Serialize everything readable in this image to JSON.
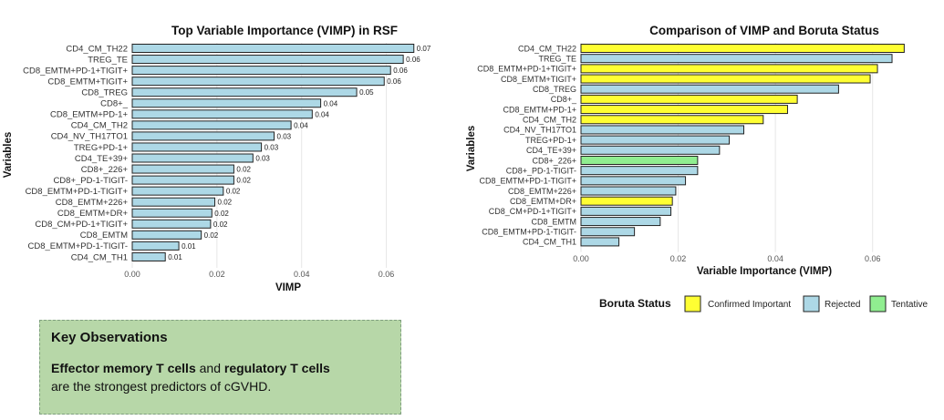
{
  "chart_data": [
    {
      "type": "bar",
      "orientation": "horizontal",
      "title": "Top Variable Importance (VIMP) in RSF",
      "xlabel": "VIMP",
      "ylabel": "Variables",
      "xlim": [
        0,
        0.07
      ],
      "xticks": [
        "0.00",
        "0.02",
        "0.04",
        "0.06"
      ],
      "grid": true,
      "data_labels": true,
      "bar_color": "#add8e6",
      "categories": [
        "CD4_CM_TH22",
        "TREG_TE",
        "CD8_EMTM+PD-1+TIGIT+",
        "CD8_EMTM+TIGIT+",
        "CD8_TREG",
        "CD8+_",
        "CD8_EMTM+PD-1+",
        "CD4_CM_TH2",
        "CD4_NV_TH17TO1",
        "TREG+PD-1+",
        "CD4_TE+39+",
        "CD8+_226+",
        "CD8+_PD-1-TIGIT-",
        "CD8_EMTM+PD-1-TIGIT+",
        "CD8_EMTM+226+",
        "CD8_EMTM+DR+",
        "CD8_CM+PD-1+TIGIT+",
        "CD8_EMTM",
        "CD8_EMTM+PD-1-TIGIT-",
        "CD4_CM_TH1"
      ],
      "values": [
        0.0665,
        0.064,
        0.061,
        0.0595,
        0.053,
        0.0445,
        0.0425,
        0.0375,
        0.0335,
        0.0305,
        0.0285,
        0.024,
        0.024,
        0.0215,
        0.0195,
        0.0188,
        0.0185,
        0.0163,
        0.011,
        0.0078
      ],
      "labels": [
        "0.07",
        "0.06",
        "0.06",
        "0.06",
        "0.05",
        "0.04",
        "0.04",
        "0.04",
        "0.03",
        "0.03",
        "0.03",
        "0.02",
        "0.02",
        "0.02",
        "0.02",
        "0.02",
        "0.02",
        "0.02",
        "0.01",
        "0.01"
      ]
    },
    {
      "type": "bar",
      "orientation": "horizontal",
      "title": "Comparison of VIMP and Boruta Status",
      "xlabel": "Variable Importance (VIMP)",
      "ylabel": "Variables",
      "xlim": [
        0,
        0.07
      ],
      "xticks": [
        "0.00",
        "0.02",
        "0.04",
        "0.06"
      ],
      "grid": true,
      "legend": {
        "title": "Boruta Status",
        "placement": "bottom",
        "entries": [
          {
            "name": "Confirmed Important",
            "color": "#ffff33"
          },
          {
            "name": "Rejected",
            "color": "#add8e6"
          },
          {
            "name": "Tentative",
            "color": "#90ee90"
          }
        ]
      },
      "categories": [
        "CD4_CM_TH22",
        "TREG_TE",
        "CD8_EMTM+PD-1+TIGIT+",
        "CD8_EMTM+TIGIT+",
        "CD8_TREG",
        "CD8+_",
        "CD8_EMTM+PD-1+",
        "CD4_CM_TH2",
        "CD4_NV_TH17TO1",
        "TREG+PD-1+",
        "CD4_TE+39+",
        "CD8+_226+",
        "CD8+_PD-1-TIGIT-",
        "CD8_EMTM+PD-1-TIGIT+",
        "CD8_EMTM+226+",
        "CD8_EMTM+DR+",
        "CD8_CM+PD-1+TIGIT+",
        "CD8_EMTM",
        "CD8_EMTM+PD-1-TIGIT-",
        "CD4_CM_TH1"
      ],
      "values": [
        0.0665,
        0.064,
        0.061,
        0.0595,
        0.053,
        0.0445,
        0.0425,
        0.0375,
        0.0335,
        0.0305,
        0.0285,
        0.024,
        0.024,
        0.0215,
        0.0195,
        0.0188,
        0.0185,
        0.0163,
        0.011,
        0.0078
      ],
      "status": [
        "Confirmed Important",
        "Rejected",
        "Confirmed Important",
        "Confirmed Important",
        "Rejected",
        "Confirmed Important",
        "Confirmed Important",
        "Confirmed Important",
        "Rejected",
        "Rejected",
        "Rejected",
        "Tentative",
        "Rejected",
        "Rejected",
        "Rejected",
        "Confirmed Important",
        "Rejected",
        "Rejected",
        "Rejected",
        "Rejected"
      ]
    }
  ],
  "observations": {
    "title": "Key Observations",
    "bold1": "Effector memory T cells",
    "text1": " and ",
    "bold2": "regulatory T cells",
    "text2": "are the strongest predictors of cGVHD."
  }
}
